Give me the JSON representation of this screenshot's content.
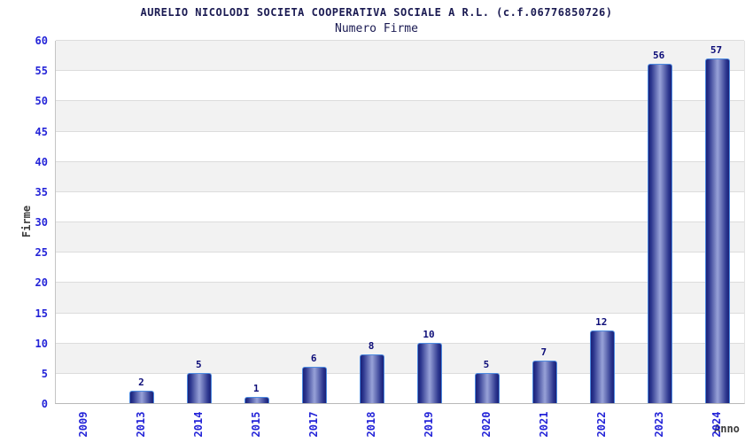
{
  "chart_data": {
    "type": "bar",
    "title": "AURELIO NICOLODI SOCIETA COOPERATIVA SOCIALE A R.L. (c.f.06776850726)",
    "subtitle": "Numero Firme",
    "xlabel": "Anno",
    "ylabel": "Firme",
    "categories": [
      "2009",
      "2013",
      "2014",
      "2015",
      "2017",
      "2018",
      "2019",
      "2020",
      "2021",
      "2022",
      "2023",
      "2024"
    ],
    "values": [
      0,
      2,
      5,
      1,
      6,
      8,
      10,
      5,
      7,
      12,
      56,
      57
    ],
    "ylim": [
      0,
      60
    ],
    "ytick_step": 5,
    "grid": "horizontal",
    "band_fill": "alternating",
    "legend": "none",
    "colors": {
      "bar_edge_dark": "#1a2178",
      "bar_mid": "#2c368e",
      "bar_center_light": "#98a2d8",
      "bar_border": "#4d8be0",
      "tick_label": "#2424d8",
      "value_label": "#0d0d78",
      "title_text": "#1a1a52",
      "axis_title_text": "#3c3c3c",
      "band": "#f2f2f2",
      "gridline": "#dcdcdc",
      "background": "#ffffff"
    }
  }
}
